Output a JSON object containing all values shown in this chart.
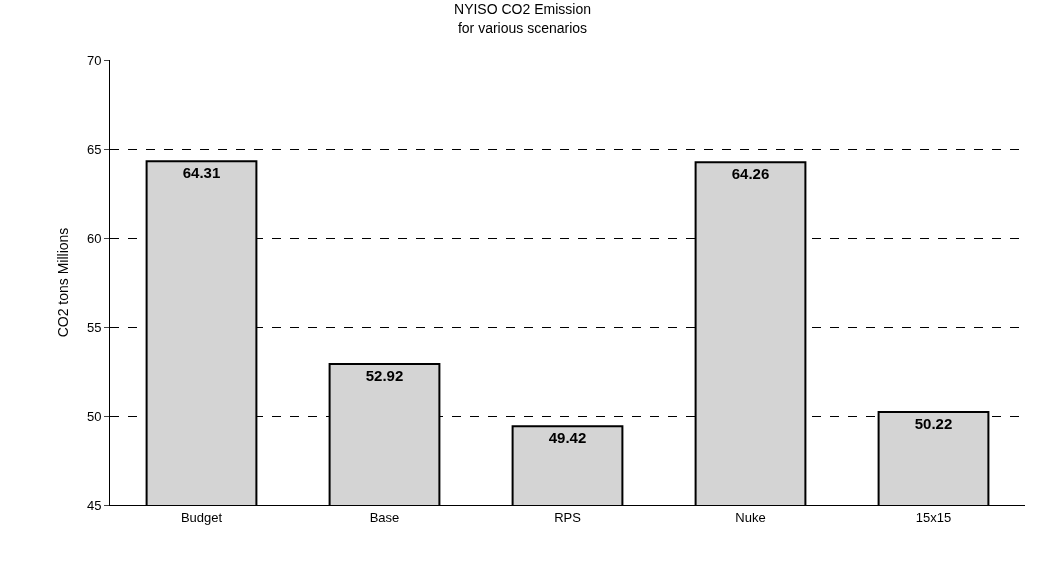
{
  "chart_data": {
    "type": "bar",
    "title": "NYISO CO2 Emission\nfor various scenarios",
    "ylabel": "CO2 tons Millions",
    "categories": [
      "Budget",
      "Base",
      "RPS",
      "Nuke",
      "15x15"
    ],
    "values": [
      64.31,
      52.92,
      49.42,
      64.26,
      50.22
    ],
    "color": "#d4d4d4",
    "ylim": [
      45,
      70
    ],
    "yticks": [
      45,
      50,
      55,
      60,
      65,
      70
    ],
    "grid": "y",
    "data_labels": true
  }
}
